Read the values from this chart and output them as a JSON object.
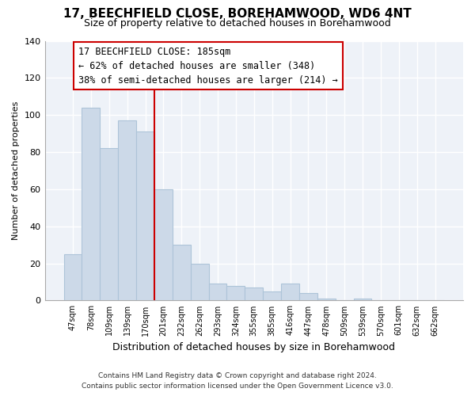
{
  "title": "17, BEECHFIELD CLOSE, BOREHAMWOOD, WD6 4NT",
  "subtitle": "Size of property relative to detached houses in Borehamwood",
  "xlabel": "Distribution of detached houses by size in Borehamwood",
  "ylabel": "Number of detached properties",
  "bar_labels": [
    "47sqm",
    "78sqm",
    "109sqm",
    "139sqm",
    "170sqm",
    "201sqm",
    "232sqm",
    "262sqm",
    "293sqm",
    "324sqm",
    "355sqm",
    "385sqm",
    "416sqm",
    "447sqm",
    "478sqm",
    "509sqm",
    "539sqm",
    "570sqm",
    "601sqm",
    "632sqm",
    "662sqm"
  ],
  "bar_values": [
    25,
    104,
    82,
    97,
    91,
    60,
    30,
    20,
    9,
    8,
    7,
    5,
    9,
    4,
    1,
    0,
    1,
    0,
    0,
    0,
    0
  ],
  "bar_color": "#ccd9e8",
  "bar_edge_color": "#adc4d8",
  "vline_x": 4.5,
  "vline_color": "#cc0000",
  "annotation_title": "17 BEECHFIELD CLOSE: 185sqm",
  "annotation_line1": "← 62% of detached houses are smaller (348)",
  "annotation_line2": "38% of semi-detached houses are larger (214) →",
  "annotation_box_facecolor": "#ffffff",
  "annotation_box_edgecolor": "#cc0000",
  "ylim": [
    0,
    140
  ],
  "yticks": [
    0,
    20,
    40,
    60,
    80,
    100,
    120,
    140
  ],
  "footer1": "Contains HM Land Registry data © Crown copyright and database right 2024.",
  "footer2": "Contains public sector information licensed under the Open Government Licence v3.0.",
  "background_color": "#ffffff",
  "plot_bg_color": "#eef2f8",
  "grid_color": "#ffffff",
  "title_fontsize": 11,
  "subtitle_fontsize": 9
}
